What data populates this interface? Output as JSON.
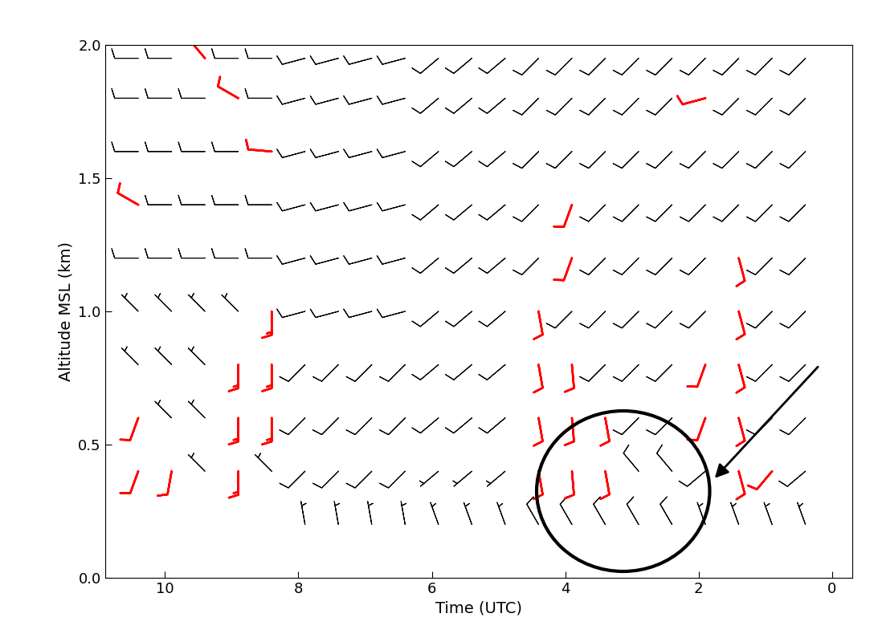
{
  "chart_data": {
    "type": "barbs",
    "xlabel": "Time (UTC)",
    "ylabel": "Altitude MSL (km)",
    "xlim": [
      10.9,
      -0.3
    ],
    "xticks": [
      10,
      8,
      6,
      4,
      2,
      0
    ],
    "ylim": [
      0.0,
      2.0
    ],
    "yticks": [
      0.0,
      0.5,
      1.0,
      1.5,
      2.0
    ],
    "grid": false,
    "wind_grid": {
      "color": "black",
      "times": [
        10.4,
        9.9,
        9.4,
        8.9,
        8.4,
        7.9,
        7.4,
        6.9,
        6.4,
        5.9,
        5.4,
        4.9,
        4.4,
        3.9,
        3.4,
        2.9,
        2.4,
        1.9,
        1.4,
        0.9,
        0.4
      ],
      "altitudes": [
        0.2,
        0.4,
        0.6,
        0.8,
        1.0,
        1.2,
        1.4,
        1.6,
        1.8,
        1.95
      ],
      "direction": [
        [
          null,
          null,
          null,
          null,
          null,
          350,
          350,
          350,
          350,
          340,
          340,
          340,
          330,
          330,
          330,
          330,
          330,
          340,
          340,
          340,
          340
        ],
        [
          null,
          null,
          315,
          null,
          315,
          225,
          225,
          225,
          225,
          230,
          230,
          230,
          null,
          null,
          null,
          320,
          320,
          230,
          null,
          null,
          230
        ],
        [
          null,
          315,
          315,
          null,
          null,
          225,
          225,
          225,
          225,
          230,
          230,
          230,
          null,
          null,
          null,
          225,
          225,
          null,
          null,
          225,
          225
        ],
        [
          315,
          315,
          315,
          null,
          null,
          225,
          225,
          225,
          225,
          230,
          230,
          230,
          null,
          null,
          225,
          225,
          225,
          null,
          null,
          225,
          225
        ],
        [
          315,
          315,
          315,
          315,
          null,
          255,
          255,
          255,
          255,
          230,
          230,
          230,
          null,
          225,
          225,
          225,
          225,
          225,
          null,
          225,
          225
        ],
        [
          270,
          270,
          270,
          270,
          270,
          255,
          255,
          255,
          255,
          230,
          230,
          230,
          225,
          null,
          225,
          225,
          225,
          225,
          null,
          225,
          225
        ],
        [
          null,
          270,
          270,
          270,
          270,
          255,
          255,
          255,
          255,
          230,
          230,
          230,
          225,
          null,
          225,
          225,
          225,
          225,
          225,
          225,
          225
        ],
        [
          270,
          270,
          270,
          270,
          null,
          255,
          255,
          255,
          255,
          230,
          230,
          230,
          225,
          225,
          225,
          225,
          225,
          225,
          225,
          225,
          225
        ],
        [
          270,
          270,
          270,
          null,
          270,
          255,
          255,
          255,
          255,
          230,
          230,
          230,
          225,
          225,
          225,
          225,
          225,
          null,
          225,
          225,
          225
        ],
        [
          270,
          270,
          null,
          270,
          270,
          255,
          255,
          255,
          255,
          230,
          230,
          230,
          225,
          225,
          225,
          225,
          225,
          225,
          225,
          225,
          225
        ]
      ],
      "speed": [
        [
          null,
          null,
          null,
          null,
          null,
          5,
          5,
          5,
          5,
          5,
          5,
          5,
          10,
          10,
          10,
          10,
          10,
          5,
          5,
          5,
          5
        ],
        [
          null,
          null,
          5,
          null,
          5,
          10,
          10,
          10,
          10,
          5,
          5,
          5,
          null,
          null,
          null,
          10,
          10,
          10,
          null,
          null,
          10
        ],
        [
          null,
          5,
          5,
          null,
          null,
          10,
          10,
          10,
          10,
          10,
          10,
          10,
          null,
          null,
          null,
          10,
          10,
          null,
          null,
          10,
          10
        ],
        [
          5,
          5,
          5,
          null,
          null,
          10,
          10,
          10,
          10,
          10,
          10,
          10,
          null,
          null,
          10,
          10,
          10,
          null,
          null,
          10,
          10
        ],
        [
          5,
          5,
          5,
          5,
          null,
          10,
          10,
          10,
          10,
          10,
          10,
          10,
          null,
          10,
          10,
          10,
          10,
          10,
          null,
          10,
          10
        ],
        [
          10,
          10,
          10,
          10,
          10,
          10,
          10,
          10,
          10,
          10,
          10,
          10,
          10,
          null,
          10,
          10,
          10,
          10,
          null,
          10,
          10
        ],
        [
          null,
          10,
          10,
          10,
          10,
          10,
          10,
          10,
          10,
          10,
          10,
          10,
          10,
          null,
          10,
          10,
          10,
          10,
          10,
          10,
          10
        ],
        [
          10,
          10,
          10,
          10,
          null,
          10,
          10,
          10,
          10,
          10,
          10,
          10,
          10,
          10,
          10,
          10,
          10,
          10,
          10,
          10,
          10
        ],
        [
          10,
          10,
          10,
          null,
          10,
          10,
          10,
          10,
          10,
          10,
          10,
          10,
          10,
          10,
          10,
          10,
          10,
          null,
          10,
          10,
          10
        ],
        [
          10,
          10,
          null,
          10,
          10,
          10,
          10,
          10,
          10,
          10,
          10,
          10,
          10,
          10,
          10,
          10,
          10,
          10,
          10,
          10,
          10
        ]
      ]
    },
    "highlighted_winds": {
      "color": "red",
      "times": [
        10.4,
        10.4,
        10.4,
        9.9,
        9.4,
        8.9,
        8.9,
        8.9,
        8.9,
        8.4,
        8.4,
        8.4,
        8.4,
        4.4,
        4.4,
        4.4,
        4.4,
        3.9,
        3.9,
        3.9,
        3.9,
        3.9,
        3.4,
        3.4,
        1.9,
        1.9,
        1.9,
        1.4,
        1.4,
        1.4,
        1.4,
        1.4,
        0.9
      ],
      "altitudes": [
        0.4,
        0.6,
        1.4,
        0.4,
        1.95,
        0.4,
        0.6,
        0.8,
        1.8,
        0.6,
        0.8,
        1.0,
        1.6,
        0.4,
        0.6,
        0.8,
        1.0,
        0.4,
        0.6,
        0.8,
        1.2,
        1.4,
        0.4,
        0.6,
        0.6,
        0.8,
        1.8,
        0.4,
        0.6,
        0.8,
        1.0,
        1.2,
        0.4
      ],
      "direction": [
        200,
        200,
        300,
        190,
        320,
        180,
        180,
        180,
        300,
        180,
        180,
        180,
        275,
        170,
        170,
        170,
        170,
        175,
        175,
        175,
        200,
        200,
        170,
        170,
        200,
        200,
        255,
        165,
        165,
        165,
        165,
        165,
        220
      ],
      "speed": [
        10,
        10,
        10,
        10,
        10,
        15,
        15,
        15,
        10,
        15,
        15,
        15,
        10,
        10,
        10,
        10,
        10,
        10,
        10,
        10,
        10,
        10,
        10,
        10,
        10,
        10,
        10,
        10,
        10,
        10,
        10,
        10,
        10
      ]
    }
  }
}
